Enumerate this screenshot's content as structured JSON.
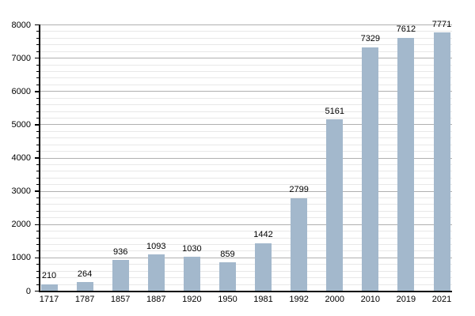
{
  "chart_data": {
    "type": "bar",
    "categories": [
      "1717",
      "1787",
      "1857",
      "1887",
      "1920",
      "1950",
      "1981",
      "1992",
      "2000",
      "2010",
      "2019",
      "2021"
    ],
    "values": [
      210,
      264,
      936,
      1093,
      1030,
      859,
      1442,
      2799,
      5161,
      7329,
      7612,
      7771
    ],
    "bar_labels": [
      "210",
      "264",
      "936",
      "1093",
      "1030",
      "859",
      "1442",
      "2799",
      "5161",
      "7329",
      "7612",
      "7771"
    ],
    "title": "",
    "xlabel": "",
    "ylabel": "",
    "ylim": [
      0,
      8000
    ],
    "y_tick_labels": [
      "0",
      "1000",
      "2000",
      "3000",
      "4000",
      "5000",
      "6000",
      "7000",
      "8000"
    ],
    "y_major_step": 1000,
    "y_minor_step": 200,
    "grid": "on",
    "legend": "none",
    "colors": {
      "bar": "#a3b8cc",
      "grid_major": "#b0b0b0",
      "grid_minor": "#e8e8e8",
      "axis": "#000000",
      "text": "#000000",
      "background": "#ffffff"
    }
  }
}
